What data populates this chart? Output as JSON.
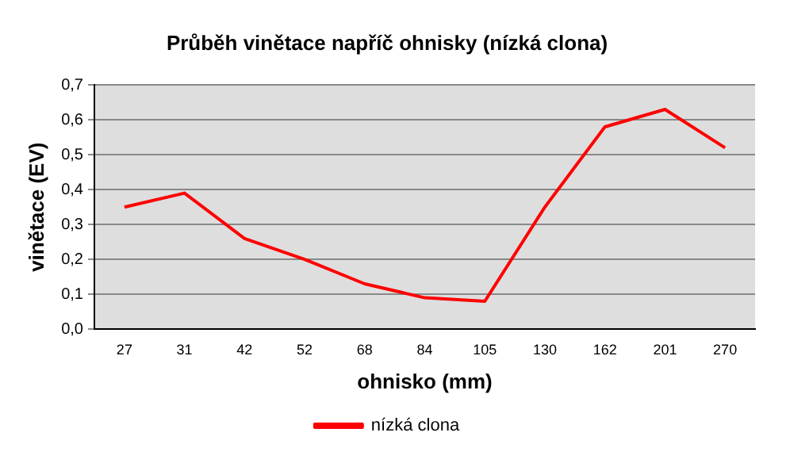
{
  "chart_data": {
    "type": "line",
    "title": "Průběh vinětace napříč ohnisky (nízká clona)",
    "xlabel": "ohnisko (mm)",
    "ylabel": "vinětace (EV)",
    "categories": [
      "27",
      "31",
      "42",
      "52",
      "68",
      "84",
      "105",
      "130",
      "162",
      "201",
      "270"
    ],
    "series": [
      {
        "name": "nízká clona",
        "color": "#ff0000",
        "values": [
          0.35,
          0.39,
          0.26,
          0.2,
          0.13,
          0.09,
          0.08,
          0.35,
          0.58,
          0.63,
          0.52
        ]
      }
    ],
    "ylim": [
      0,
      0.7
    ],
    "yticks": [
      {
        "value": 0,
        "label": "0,0"
      },
      {
        "value": 0.1,
        "label": "0,1"
      },
      {
        "value": 0.2,
        "label": "0,2"
      },
      {
        "value": 0.3,
        "label": "0,3"
      },
      {
        "value": 0.4,
        "label": "0,4"
      },
      {
        "value": 0.5,
        "label": "0,5"
      },
      {
        "value": 0.6,
        "label": "0,6"
      },
      {
        "value": 0.7,
        "label": "0,7"
      }
    ],
    "grid": "y",
    "legend": "bottom",
    "marker": "none",
    "line_style": "solid"
  }
}
